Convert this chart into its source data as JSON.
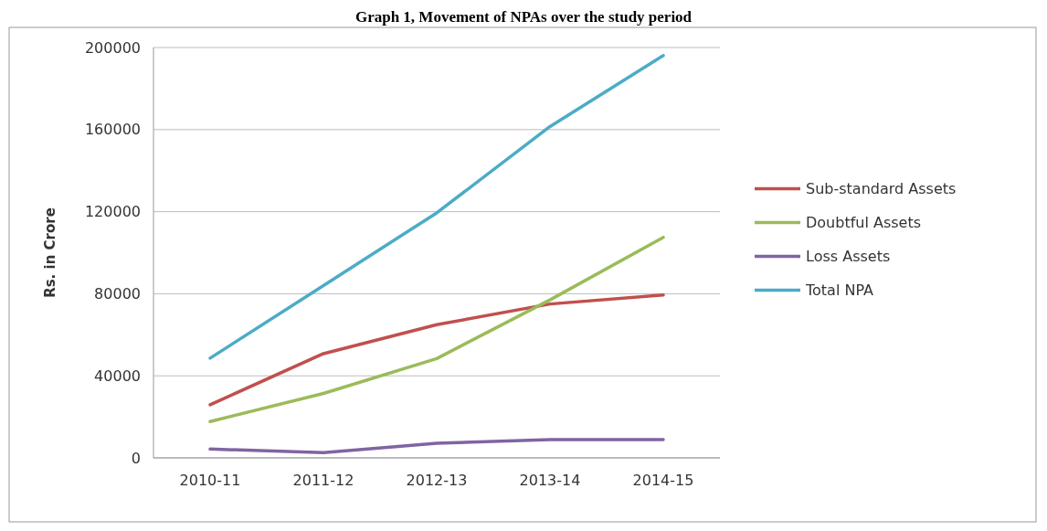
{
  "chart_data": {
    "type": "line",
    "title": "Graph 1, Movement of NPAs over the study period",
    "ylabel": "Rs. in Crore",
    "categories": [
      "2010-11",
      "2011-12",
      "2012-13",
      "2013-14",
      "2014-15"
    ],
    "series": [
      {
        "name": "Sub-standard Assets",
        "color": "#c0504d",
        "values": [
          25900,
          50800,
          64900,
          75000,
          79400
        ]
      },
      {
        "name": "Doubtful Assets",
        "color": "#9bbb59",
        "values": [
          17700,
          31400,
          48400,
          77000,
          107500
        ]
      },
      {
        "name": "Loss Assets",
        "color": "#8064a2",
        "values": [
          4300,
          2600,
          7100,
          8900,
          8900
        ]
      },
      {
        "name": "Total NPA",
        "color": "#4bacc6",
        "values": [
          48600,
          84000,
          119400,
          161500,
          196100
        ]
      }
    ],
    "ylim": [
      0,
      200000
    ],
    "yticks": [
      0,
      40000,
      80000,
      120000,
      160000,
      200000
    ],
    "grid": "y",
    "legend": "right",
    "marker": "none",
    "line_style": "solid"
  }
}
